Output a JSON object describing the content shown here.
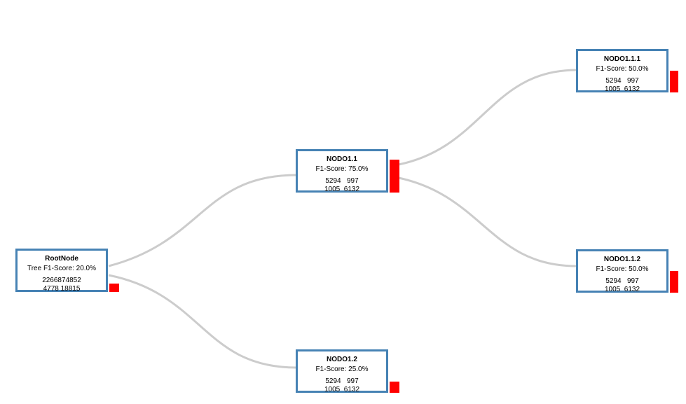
{
  "colors": {
    "border": "#4682b4",
    "link": "#cccccc",
    "bar": "#ff0000"
  },
  "nodes": {
    "root": {
      "title": "RootNode",
      "score": "Tree F1-Score: 20.0%",
      "row1": "2266874852",
      "row2": "4778 18815",
      "fraction": 0.2
    },
    "n11": {
      "title": "NODO1.1",
      "score": "F1-Score: 75.0%",
      "row1": "5294   997",
      "row2": "1005  6132",
      "fraction": 0.75
    },
    "n12": {
      "title": "NODO1.2",
      "score": "F1-Score: 25.0%",
      "row1": "5294   997",
      "row2": "1005  6132",
      "fraction": 0.25
    },
    "n111": {
      "title": "NODO1.1.1",
      "score": "F1-Score: 50.0%",
      "row1": "5294   997",
      "row2": "1005  6132",
      "fraction": 0.5
    },
    "n112": {
      "title": "NODO1.1.2",
      "score": "F1-Score: 50.0%",
      "row1": "5294   997",
      "row2": "1005  6132",
      "fraction": 0.5
    }
  }
}
